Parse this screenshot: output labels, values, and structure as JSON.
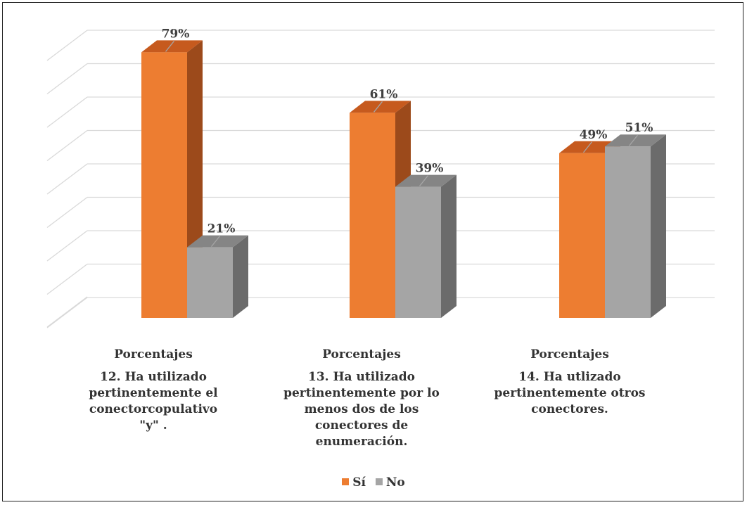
{
  "chart_data": {
    "type": "bar",
    "title": "",
    "xlabel": "",
    "ylabel": "",
    "ylim": [
      0,
      85
    ],
    "grid": true,
    "legend_position": "bottom",
    "categories": [
      {
        "sub": "Porcentajes",
        "label": "12. Ha utilizado pertinentemente el conectorcopulativo \"y\" ."
      },
      {
        "sub": "Porcentajes",
        "label": "13. Ha utilizado pertinentemente por lo menos dos de los conectores de enumeración."
      },
      {
        "sub": "Porcentajes",
        "label": "14. Ha utlizado pertinentemente otros conectores."
      }
    ],
    "series": [
      {
        "name": "Sí",
        "color": "#ED7D31",
        "values": [
          79,
          61,
          49
        ],
        "labels": [
          "79%",
          "61%",
          "49%"
        ]
      },
      {
        "name": "No",
        "color": "#A5A5A5",
        "values": [
          21,
          39,
          51
        ],
        "labels": [
          "21%",
          "39%",
          "51%"
        ]
      }
    ]
  }
}
